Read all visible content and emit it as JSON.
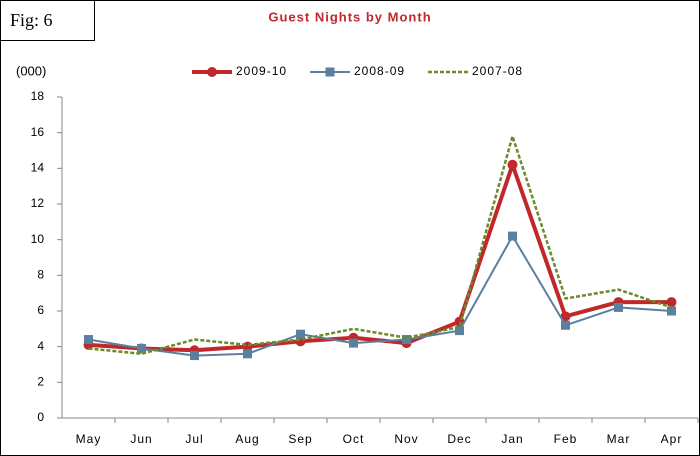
{
  "fig_label": "Fig: 6",
  "chart_data": {
    "type": "line",
    "title": "Guest Nights by Month",
    "y_label": "(000)",
    "categories": [
      "May",
      "Jun",
      "Jul",
      "Aug",
      "Sep",
      "Oct",
      "Nov",
      "Dec",
      "Jan",
      "Feb",
      "Mar",
      "Apr"
    ],
    "series": [
      {
        "name": "2009-10",
        "color": "#c0282a",
        "marker": "circle",
        "dash": false,
        "width": 4,
        "values": [
          4.1,
          3.9,
          3.8,
          4.0,
          4.3,
          4.5,
          4.2,
          5.4,
          14.2,
          5.7,
          6.5,
          6.5
        ]
      },
      {
        "name": "2008-09",
        "color": "#5b7f9f",
        "marker": "square",
        "dash": false,
        "width": 2,
        "values": [
          4.4,
          3.9,
          3.5,
          3.6,
          4.7,
          4.2,
          4.4,
          4.9,
          10.2,
          5.2,
          6.2,
          6.0
        ]
      },
      {
        "name": "2007-08",
        "color": "#6b8a2a",
        "marker": null,
        "dash": true,
        "width": 2.5,
        "values": [
          3.9,
          3.6,
          4.4,
          4.1,
          4.4,
          5.0,
          4.5,
          5.1,
          15.8,
          6.7,
          7.2,
          6.2
        ]
      }
    ],
    "ylim": [
      0,
      18
    ],
    "yticks": [
      0,
      2,
      4,
      6,
      8,
      10,
      12,
      14,
      16,
      18
    ],
    "grid": false
  }
}
